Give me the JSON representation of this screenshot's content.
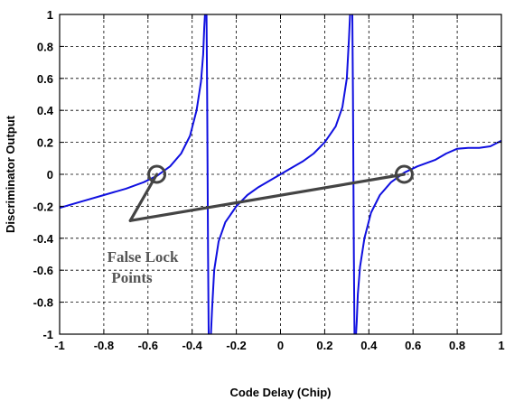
{
  "chart_data": {
    "type": "line",
    "xlabel": "Code Delay (Chip)",
    "ylabel": "Discriminator Output",
    "xlim": [
      -1,
      1
    ],
    "ylim": [
      -1,
      1
    ],
    "x_ticks": [
      "-1",
      "-0.8",
      "-0.6",
      "-0.4",
      "-0.2",
      "0",
      "0.2",
      "0.4",
      "0.6",
      "0.8",
      "1"
    ],
    "y_ticks": [
      "1",
      "0.8",
      "0.6",
      "0.4",
      "0.2",
      "0",
      "-0.2",
      "-0.4",
      "-0.6",
      "-0.8",
      "-1"
    ],
    "grid": true,
    "series": [
      {
        "color": "#1010e0",
        "segments": [
          [
            [
              -1.0,
              -0.21
            ],
            [
              -0.9,
              -0.17
            ],
            [
              -0.8,
              -0.13
            ],
            [
              -0.7,
              -0.09
            ],
            [
              -0.62,
              -0.05
            ],
            [
              -0.56,
              -0.01
            ],
            [
              -0.5,
              0.05
            ],
            [
              -0.45,
              0.13
            ],
            [
              -0.41,
              0.24
            ],
            [
              -0.38,
              0.4
            ],
            [
              -0.36,
              0.58
            ],
            [
              -0.35,
              0.75
            ],
            [
              -0.345,
              0.92
            ],
            [
              -0.342,
              1.0
            ]
          ],
          [
            [
              -0.335,
              1.0
            ],
            [
              -0.332,
              0.5
            ],
            [
              -0.33,
              0.0
            ],
            [
              -0.328,
              -0.5
            ],
            [
              -0.325,
              -1.0
            ]
          ],
          [
            [
              -0.315,
              -1.0
            ],
            [
              -0.31,
              -0.85
            ],
            [
              -0.3,
              -0.6
            ],
            [
              -0.28,
              -0.42
            ],
            [
              -0.25,
              -0.3
            ],
            [
              -0.2,
              -0.2
            ],
            [
              -0.15,
              -0.13
            ],
            [
              -0.1,
              -0.08
            ],
            [
              -0.05,
              -0.04
            ],
            [
              0.0,
              0.0
            ],
            [
              0.05,
              0.04
            ],
            [
              0.1,
              0.08
            ],
            [
              0.15,
              0.13
            ],
            [
              0.2,
              0.2
            ],
            [
              0.25,
              0.3
            ],
            [
              0.28,
              0.42
            ],
            [
              0.3,
              0.6
            ],
            [
              0.31,
              0.85
            ],
            [
              0.315,
              1.0
            ]
          ],
          [
            [
              0.325,
              1.0
            ],
            [
              0.328,
              0.5
            ],
            [
              0.33,
              0.0
            ],
            [
              0.332,
              -0.5
            ],
            [
              0.335,
              -1.0
            ]
          ],
          [
            [
              0.342,
              -1.0
            ],
            [
              0.345,
              -0.92
            ],
            [
              0.35,
              -0.75
            ],
            [
              0.36,
              -0.58
            ],
            [
              0.38,
              -0.4
            ],
            [
              0.41,
              -0.24
            ],
            [
              0.45,
              -0.13
            ],
            [
              0.5,
              -0.05
            ],
            [
              0.56,
              0.01
            ],
            [
              0.62,
              0.05
            ],
            [
              0.7,
              0.09
            ],
            [
              0.75,
              0.13
            ],
            [
              0.8,
              0.16
            ],
            [
              0.85,
              0.165
            ],
            [
              0.9,
              0.165
            ],
            [
              0.95,
              0.175
            ],
            [
              1.0,
              0.21
            ]
          ]
        ]
      }
    ],
    "false_lock_points": [
      [
        -0.56,
        0.0
      ],
      [
        0.56,
        0.0
      ]
    ],
    "annotation": {
      "text_line1": "False Lock",
      "text_line2": "Points",
      "anchor": [
        -0.68,
        -0.29
      ],
      "color": "#444444"
    }
  }
}
